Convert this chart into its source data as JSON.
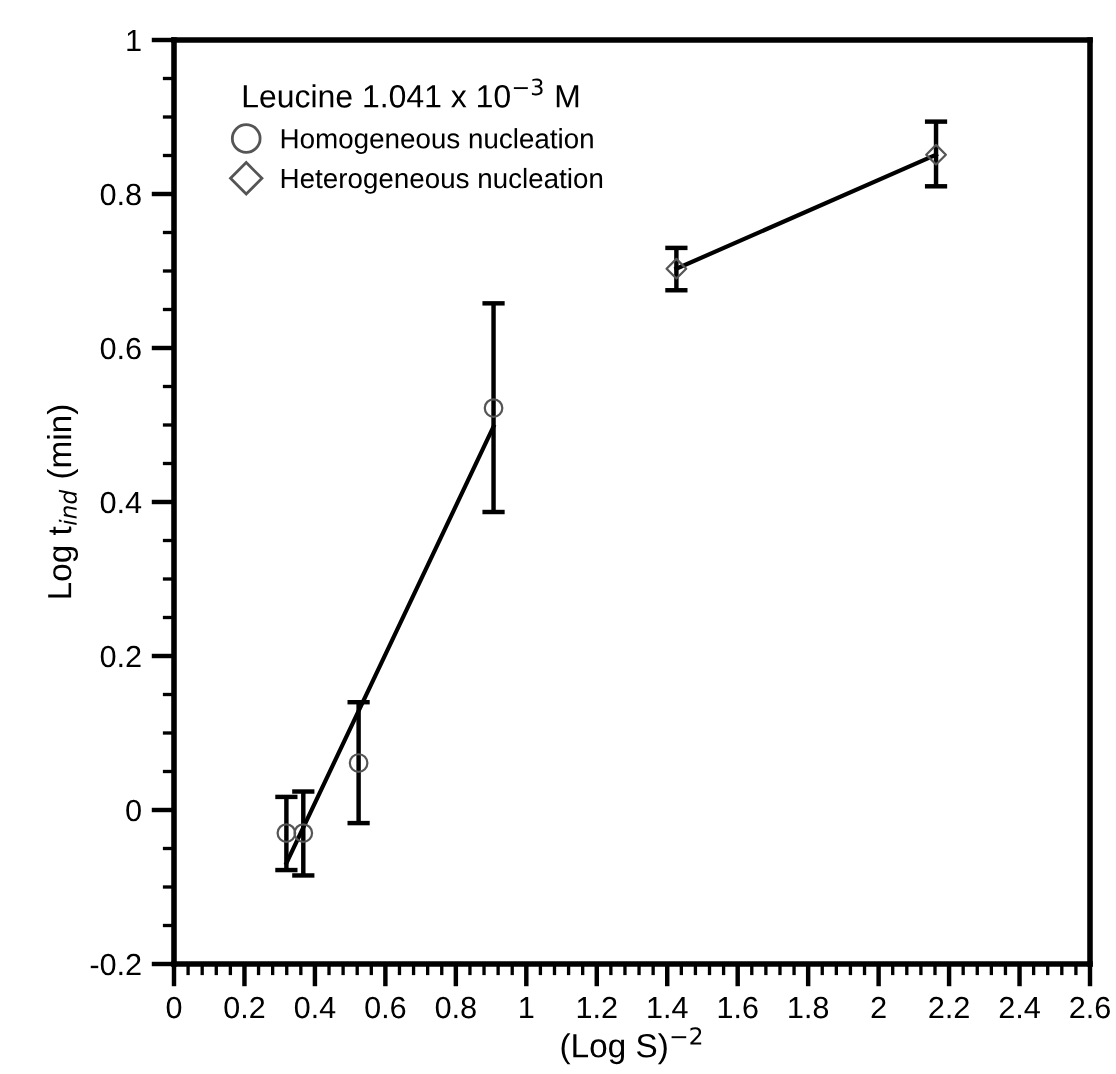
{
  "chart_data": {
    "type": "scatter",
    "xlabel": "(Log S)$^{−2}$",
    "ylabel": "Log t$_{ind}$ (min)",
    "legend_title": "Leucine 1.041 x 10$^{−3}$ M",
    "xlim": [
      0,
      2.6
    ],
    "xticks": [
      0,
      0.2,
      0.4,
      0.6,
      0.8,
      1,
      1.2,
      1.4,
      1.6,
      1.8,
      2,
      2.2,
      2.4,
      2.6
    ],
    "ylim": [
      -0.2,
      1
    ],
    "yticks": [
      -0.2,
      0,
      0.2,
      0.4,
      0.6,
      0.8,
      1
    ],
    "grid": false,
    "legend": "top left",
    "series": [
      {
        "name": "Homogeneous nucleation",
        "marker": "circle",
        "color": "#555555",
        "x": [
          0.319,
          0.367,
          0.524,
          0.907
        ],
        "values": [
          -0.03,
          -0.03,
          0.061,
          0.522
        ],
        "errors": [
          [
            -0.078,
            0.017
          ],
          [
            -0.085,
            0.024
          ],
          [
            -0.017,
            0.14
          ],
          [
            0.387,
            0.658
          ]
        ]
      },
      {
        "name": "Heterogeneous nucleation",
        "marker": "diamond",
        "color": "#555555",
        "x": [
          1.426,
          2.163
        ],
        "values": [
          0.703,
          0.851
        ],
        "errors": [
          [
            0.675,
            0.73
          ],
          [
            0.81,
            0.894
          ]
        ]
      },
      {
        "type": "line",
        "color": "#000000",
        "x": [
          0.319,
          0.907
        ],
        "values": [
          -0.069,
          0.498
        ]
      },
      {
        "type": "line",
        "color": "#000000",
        "x": [
          1.426,
          2.163
        ],
        "values": [
          0.703,
          0.851
        ]
      }
    ]
  }
}
